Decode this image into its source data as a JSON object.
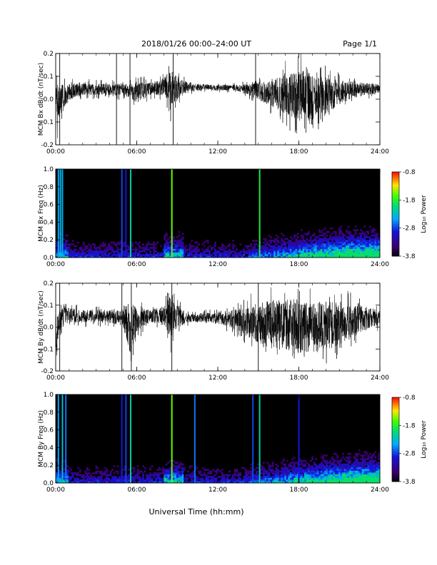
{
  "header": {
    "title": "2018/01/26  00:00–24:00 UT",
    "page": "Page 1/1"
  },
  "chart_data": [
    {
      "type": "line",
      "ylabel": "MCM Bx dB/dt (nT/sec)",
      "xlabel": "",
      "xlim": [
        0,
        24
      ],
      "ylim": [
        -0.2,
        0.2
      ],
      "x_ticks": [
        "00:00",
        "06:00",
        "12:00",
        "18:00",
        "24:00"
      ],
      "y_ticks": [
        "0.2",
        "0.1",
        "0.0",
        "-0.1",
        "-0.2"
      ],
      "envelope": {
        "hours": [
          0,
          0.5,
          1,
          1.5,
          2,
          3,
          4,
          5,
          5.5,
          6,
          7,
          8,
          8.5,
          9,
          9.5,
          10,
          11,
          12,
          13,
          14,
          15,
          16,
          16.5,
          17,
          17.5,
          18,
          18.5,
          19,
          20,
          21,
          22,
          23,
          24
        ],
        "upper": [
          0.11,
          0.1,
          0.09,
          0.09,
          0.09,
          0.085,
          0.085,
          0.09,
          0.09,
          0.11,
          0.09,
          0.12,
          0.19,
          0.13,
          0.1,
          0.08,
          0.075,
          0.07,
          0.07,
          0.08,
          0.1,
          0.12,
          0.15,
          0.17,
          0.19,
          0.2,
          0.2,
          0.18,
          0.15,
          0.12,
          0.1,
          0.09,
          0.08
        ],
        "lower": [
          -0.2,
          -0.08,
          -0.03,
          -0.01,
          0,
          0,
          0,
          -0.01,
          -0.02,
          -0.05,
          0,
          -0.01,
          -0.1,
          -0.04,
          0,
          0.02,
          0.03,
          0.03,
          0.03,
          0.01,
          -0.03,
          -0.07,
          -0.1,
          -0.12,
          -0.15,
          -0.16,
          -0.18,
          -0.19,
          -0.12,
          -0.06,
          -0.02,
          0,
          0.01
        ]
      },
      "spikes": [
        0.3,
        4.5,
        5.5,
        8.7,
        14.8
      ]
    },
    {
      "type": "heatmap",
      "ylabel": "MCM Bx Freq (Hz)",
      "xlim": [
        0,
        24
      ],
      "ylim": [
        0,
        1.0
      ],
      "x_ticks": [
        "00:00",
        "06:00",
        "12:00",
        "18:00",
        "24:00"
      ],
      "y_ticks": [
        "1.0",
        "0.8",
        "0.6",
        "0.4",
        "0.2",
        "0.0"
      ],
      "colorbar": {
        "label": "Log₁₀ Power",
        "ticks": [
          "-0.8",
          "-1.8",
          "-2.8",
          "-3.8"
        ]
      },
      "vertical_bands": [
        {
          "hour": 0.2,
          "level": 0.45
        },
        {
          "hour": 0.35,
          "level": 0.5
        },
        {
          "hour": 0.5,
          "level": 0.45
        },
        {
          "hour": 4.9,
          "level": 0.35
        },
        {
          "hour": 5.2,
          "level": 0.3
        },
        {
          "hour": 5.55,
          "level": 0.55
        },
        {
          "hour": 8.6,
          "level": 0.75
        },
        {
          "hour": 15.1,
          "level": 0.65
        }
      ]
    },
    {
      "type": "line",
      "ylabel": "MCM By dB/dt (nT/sec)",
      "xlabel": "",
      "xlim": [
        0,
        24
      ],
      "ylim": [
        -0.2,
        0.2
      ],
      "x_ticks": [
        "00:00",
        "06:00",
        "12:00",
        "18:00",
        "24:00"
      ],
      "y_ticks": [
        "0.2",
        "0.1",
        "0.0",
        "-0.1",
        "-0.2"
      ],
      "envelope": {
        "hours": [
          0,
          0.5,
          1,
          2,
          3,
          4,
          5,
          5.5,
          6,
          7,
          8,
          8.5,
          9,
          9.5,
          10,
          11,
          12,
          13,
          14,
          15,
          16,
          17,
          18,
          19,
          20,
          21,
          22,
          23,
          24
        ],
        "upper": [
          0.12,
          0.12,
          0.11,
          0.1,
          0.1,
          0.095,
          0.1,
          0.2,
          0.12,
          0.1,
          0.12,
          0.2,
          0.14,
          0.09,
          0.07,
          0.08,
          0.08,
          0.1,
          0.14,
          0.17,
          0.2,
          0.2,
          0.2,
          0.2,
          0.19,
          0.18,
          0.16,
          0.13,
          0.1
        ],
        "lower": [
          -0.2,
          -0.03,
          0,
          0,
          0,
          0,
          -0.02,
          -0.2,
          -0.06,
          0,
          -0.01,
          -0.12,
          -0.05,
          0,
          0.01,
          0.01,
          0,
          -0.03,
          -0.08,
          -0.14,
          -0.17,
          -0.19,
          -0.2,
          -0.2,
          -0.18,
          -0.15,
          -0.1,
          -0.05,
          -0.02
        ]
      },
      "spikes": [
        0.3,
        4.9,
        5.6,
        8.6,
        15.0
      ]
    },
    {
      "type": "heatmap",
      "ylabel": "MCM By Freq (Hz)",
      "xlabel": "Universal Time (hh:mm)",
      "xlim": [
        0,
        24
      ],
      "ylim": [
        0,
        1.0
      ],
      "x_ticks": [
        "00:00",
        "06:00",
        "12:00",
        "18:00",
        "24:00"
      ],
      "y_ticks": [
        "1.0",
        "0.8",
        "0.6",
        "0.4",
        "0.2",
        "0.0"
      ],
      "colorbar": {
        "label": "Log₁₀ Power",
        "ticks": [
          "-0.8",
          "-1.8",
          "-2.8",
          "-3.8"
        ]
      },
      "vertical_bands": [
        {
          "hour": 0.2,
          "level": 0.45
        },
        {
          "hour": 0.5,
          "level": 0.5
        },
        {
          "hour": 0.75,
          "level": 0.4
        },
        {
          "hour": 4.9,
          "level": 0.3
        },
        {
          "hour": 5.2,
          "level": 0.35
        },
        {
          "hour": 5.55,
          "level": 0.55
        },
        {
          "hour": 8.6,
          "level": 0.75
        },
        {
          "hour": 10.3,
          "level": 0.4
        },
        {
          "hour": 14.6,
          "level": 0.35
        },
        {
          "hour": 15.1,
          "level": 0.55
        },
        {
          "hour": 18.0,
          "level": 0.3
        }
      ]
    }
  ]
}
